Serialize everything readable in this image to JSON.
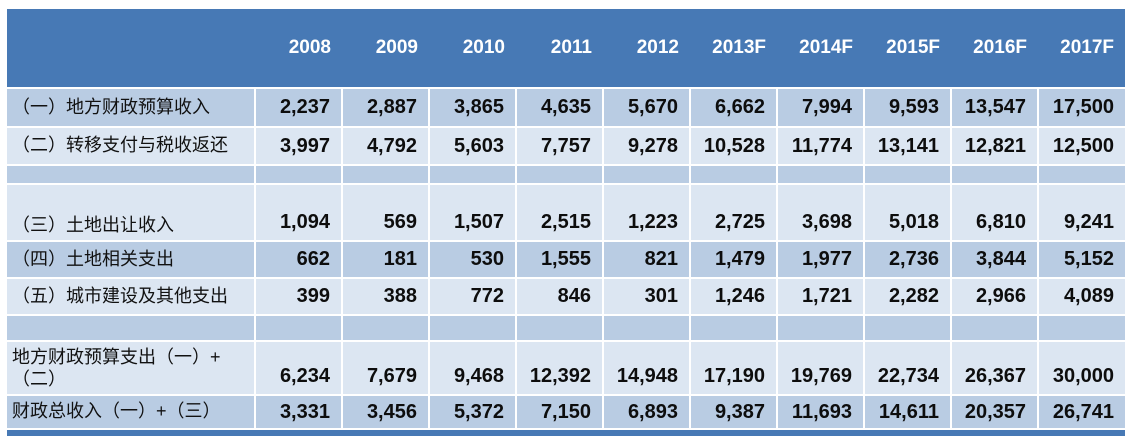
{
  "colors": {
    "header_blue": "#4779b5",
    "band_medium": "#b9cce3",
    "band_light": "#dce6f2",
    "gridline": "#ffffff",
    "header_text": "#ffffff",
    "body_text": "#0d0d0d"
  },
  "table": {
    "header": {
      "years": [
        "2008",
        "2009",
        "2010",
        "2011",
        "2012",
        "2013F",
        "2014F",
        "2015F",
        "2016F",
        "2017F"
      ]
    },
    "rows": [
      {
        "label": "（一）地方财政预算收入",
        "values": [
          "2,237",
          "2,887",
          "3,865",
          "4,635",
          "5,670",
          "6,662",
          "7,994",
          "9,593",
          "13,547",
          "17,500"
        ]
      },
      {
        "label": "（二）转移支付与税收返还",
        "values": [
          "3,997",
          "4,792",
          "5,603",
          "7,757",
          "9,278",
          "10,528",
          "11,774",
          "13,141",
          "12,821",
          "12,500"
        ]
      },
      {
        "label": "（三）土地出让收入",
        "values": [
          "1,094",
          "569",
          "1,507",
          "2,515",
          "1,223",
          "2,725",
          "3,698",
          "5,018",
          "6,810",
          "9,241"
        ]
      },
      {
        "label": "（四）土地相关支出",
        "values": [
          "662",
          "181",
          "530",
          "1,555",
          "821",
          "1,479",
          "1,977",
          "2,736",
          "3,844",
          "5,152"
        ]
      },
      {
        "label": "（五）城市建设及其他支出",
        "values": [
          "399",
          "388",
          "772",
          "846",
          "301",
          "1,246",
          "1,721",
          "2,282",
          "2,966",
          "4,089"
        ]
      },
      {
        "label": "地方财政预算支出（一）+（二）",
        "values": [
          "6,234",
          "7,679",
          "9,468",
          "12,392",
          "14,948",
          "17,190",
          "19,769",
          "22,734",
          "26,367",
          "30,000"
        ]
      },
      {
        "label": "财政总收入（一）+（三）",
        "values": [
          "3,331",
          "3,456",
          "5,372",
          "7,150",
          "6,893",
          "9,387",
          "11,693",
          "14,611",
          "20,357",
          "26,741"
        ]
      }
    ]
  },
  "chart_data": {
    "type": "table",
    "columns": [
      "2008",
      "2009",
      "2010",
      "2011",
      "2012",
      "2013F",
      "2014F",
      "2015F",
      "2016F",
      "2017F"
    ],
    "rows": [
      {
        "label": "（一）地方财政预算收入",
        "values": [
          2237,
          2887,
          3865,
          4635,
          5670,
          6662,
          7994,
          9593,
          13547,
          17500
        ]
      },
      {
        "label": "（二）转移支付与税收返还",
        "values": [
          3997,
          4792,
          5603,
          7757,
          9278,
          10528,
          11774,
          13141,
          12821,
          12500
        ]
      },
      {
        "label": "（三）土地出让收入",
        "values": [
          1094,
          569,
          1507,
          2515,
          1223,
          2725,
          3698,
          5018,
          6810,
          9241
        ]
      },
      {
        "label": "（四）土地相关支出",
        "values": [
          662,
          181,
          530,
          1555,
          821,
          1479,
          1977,
          2736,
          3844,
          5152
        ]
      },
      {
        "label": "（五）城市建设及其他支出",
        "values": [
          399,
          388,
          772,
          846,
          301,
          1246,
          1721,
          2282,
          2966,
          4089
        ]
      },
      {
        "label": "地方财政预算支出（一）+（二）",
        "values": [
          6234,
          7679,
          9468,
          12392,
          14948,
          17190,
          19769,
          22734,
          26367,
          30000
        ]
      },
      {
        "label": "财政总收入（一）+（三）",
        "values": [
          3331,
          3456,
          5372,
          7150,
          6893,
          9387,
          11693,
          14611,
          20357,
          26741
        ]
      }
    ],
    "notes": "F = forecast years; banded-row fiscal data table"
  }
}
